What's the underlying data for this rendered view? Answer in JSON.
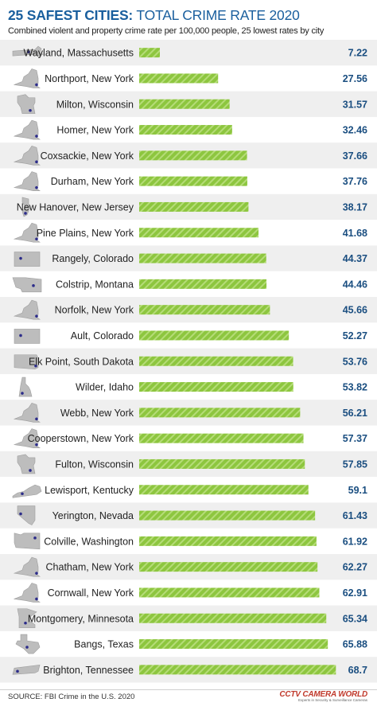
{
  "header": {
    "title_bold": "25 SAFEST CITIES:",
    "title_rest": "TOTAL CRIME RATE 2020",
    "subtitle": "Combined violent and property crime rate per 100,000 people, 25 lowest rates by city"
  },
  "footer": {
    "source": "SOURCE: FBI Crime in the U.S. 2020",
    "brand_name": "CCTV CAMERA WORLD",
    "brand_tag": "Experts in Security & Surveillance Cameras"
  },
  "colors": {
    "bar": "#8dc63f",
    "bar_stripe": "#b5dc78",
    "title": "#1a5f9e",
    "value": "#1a4e80",
    "state_fill": "#bdbdbd",
    "state_stroke": "#9e9e9e",
    "city_dot": "#2c2c8a",
    "row_alt": "#efefef"
  },
  "chart_data": {
    "type": "bar",
    "orientation": "horizontal",
    "categories": [
      "Wayland, Massachusetts",
      "Northport, New York",
      "Milton, Wisconsin",
      "Homer, New York",
      "Coxsackie, New York",
      "Durham, New York",
      "New Hanover, New Jersey",
      "Pine Plains, New York",
      "Rangely, Colorado",
      "Colstrip, Montana",
      "Norfolk, New York",
      "Ault, Colorado",
      "Elk Point, South Dakota",
      "Wilder, Idaho",
      "Webb, New York",
      "Cooperstown, New York",
      "Fulton, Wisconsin",
      "Lewisport, Kentucky",
      "Yerington, Nevada",
      "Colville, Washington",
      "Chatham, New York",
      "Cornwall, New York",
      "Montgomery, Minnesota",
      "Bangs, Texas",
      "Brighton, Tennessee"
    ],
    "value_labels": [
      "7.22",
      "27.56",
      "31.57",
      "32.46",
      "37.66",
      "37.76",
      "38.17",
      "41.68",
      "44.37",
      "44.46",
      "45.66",
      "52.27",
      "53.76",
      "53.82",
      "56.21",
      "57.37",
      "57.85",
      "59.1",
      "61.43",
      "61.92",
      "62.27",
      "62.91",
      "65.34",
      "65.88",
      "68.7"
    ],
    "values": [
      7.22,
      27.56,
      31.57,
      32.46,
      37.66,
      37.76,
      38.17,
      41.68,
      44.37,
      44.46,
      45.66,
      52.27,
      53.76,
      53.82,
      56.21,
      57.37,
      57.85,
      59.1,
      61.43,
      61.92,
      62.27,
      62.91,
      65.34,
      65.88,
      68.7
    ],
    "state_icons": [
      "massachusetts-icon",
      "new-york-icon",
      "wisconsin-icon",
      "new-york-icon",
      "new-york-icon",
      "new-york-icon",
      "new-jersey-icon",
      "new-york-icon",
      "colorado-icon",
      "montana-icon",
      "new-york-icon",
      "colorado-icon",
      "south-dakota-icon",
      "idaho-icon",
      "new-york-icon",
      "new-york-icon",
      "wisconsin-icon",
      "kentucky-icon",
      "nevada-icon",
      "washington-icon",
      "new-york-icon",
      "new-york-icon",
      "minnesota-icon",
      "texas-icon",
      "tennessee-icon"
    ],
    "xlim": [
      0,
      70
    ],
    "grid": false,
    "legend": "none"
  }
}
